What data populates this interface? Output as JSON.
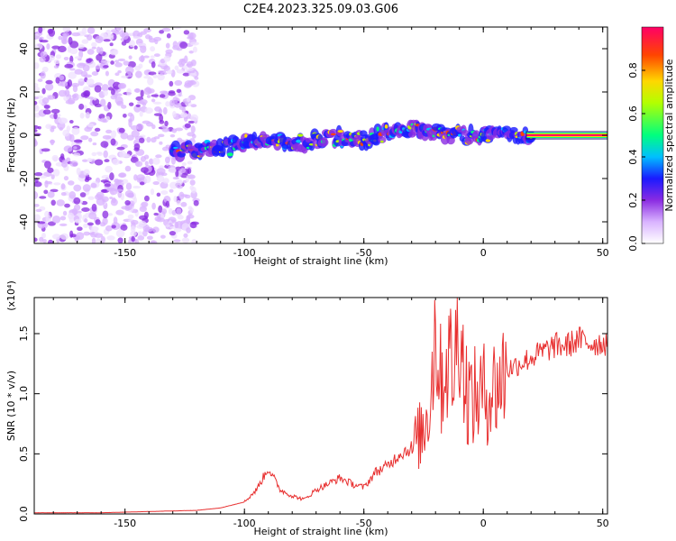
{
  "figure_title": "C2E4.2023.325.09.03.G06",
  "colors": {
    "line": "#e83030",
    "axes": "#000000",
    "spectrogram_background": "#ffffff",
    "colormap": [
      "#ffffff",
      "#d9b3ff",
      "#8a2be2",
      "#1a1aff",
      "#00bfff",
      "#00ff7f",
      "#b3ff00",
      "#ffd700",
      "#ff4500",
      "#ff0066"
    ]
  },
  "chart_data": [
    {
      "type": "heatmap",
      "xlabel": "Height of straight line (km)",
      "ylabel": "Frequency (Hz)",
      "xlim": [
        -188,
        52
      ],
      "ylim": [
        -50,
        50
      ],
      "x_ticks": [
        -150,
        -100,
        -50,
        0,
        50
      ],
      "y_ticks": [
        -40,
        -20,
        0,
        20,
        40
      ],
      "colorbar": {
        "label": "Normalized spectral amplitude",
        "range": [
          0.0,
          1.0
        ],
        "ticks": [
          "0.0",
          "0.2",
          "0.4",
          "0.6",
          "0.8"
        ]
      },
      "ridge": {
        "description_free_points": [
          [
            -130,
            -8
          ],
          [
            -120,
            -7
          ],
          [
            -110,
            -6
          ],
          [
            -100,
            -4
          ],
          [
            -90,
            -3
          ],
          [
            -80,
            -4
          ],
          [
            -70,
            -2
          ],
          [
            -60,
            -1
          ],
          [
            -50,
            -2
          ],
          [
            -40,
            1
          ],
          [
            -30,
            3
          ],
          [
            -20,
            1
          ],
          [
            -10,
            0
          ],
          [
            0,
            0
          ],
          [
            10,
            0
          ],
          [
            20,
            0
          ],
          [
            30,
            0
          ],
          [
            40,
            0
          ],
          [
            50,
            0
          ]
        ],
        "noise_region_x": [
          -188,
          -120
        ]
      }
    },
    {
      "type": "line",
      "xlabel": "Height of straight line (km)",
      "ylabel": "SNR (10 * v/v)",
      "y_multiplier_label": "(x10⁴)",
      "xlim": [
        -188,
        52
      ],
      "ylim": [
        0.0,
        1.8
      ],
      "x_ticks": [
        -150,
        -100,
        -50,
        0,
        50
      ],
      "y_ticks": [
        "0.0",
        "0.5",
        "1.0",
        "1.5"
      ],
      "series": [
        {
          "values_note": "",
          "x": [
            -188,
            -160,
            -140,
            -120,
            -110,
            -100,
            -95,
            -90,
            -85,
            -80,
            -75,
            -70,
            -65,
            -60,
            -55,
            -50,
            -45,
            -40,
            -35,
            -30,
            -25,
            -22,
            -20,
            -18,
            -15,
            -12,
            -10,
            -8,
            -5,
            0,
            5,
            10,
            15,
            20,
            25,
            30,
            35,
            40,
            45,
            50,
            52
          ],
          "y": [
            0.01,
            0.01,
            0.02,
            0.03,
            0.05,
            0.1,
            0.2,
            0.38,
            0.2,
            0.15,
            0.12,
            0.2,
            0.25,
            0.3,
            0.25,
            0.22,
            0.35,
            0.4,
            0.5,
            0.55,
            0.7,
            1.0,
            1.6,
            1.1,
            1.3,
            1.2,
            1.75,
            1.1,
            0.95,
            1.0,
            1.05,
            1.2,
            1.25,
            1.3,
            1.35,
            1.4,
            1.4,
            1.45,
            1.42,
            1.42,
            1.43
          ]
        }
      ]
    }
  ]
}
